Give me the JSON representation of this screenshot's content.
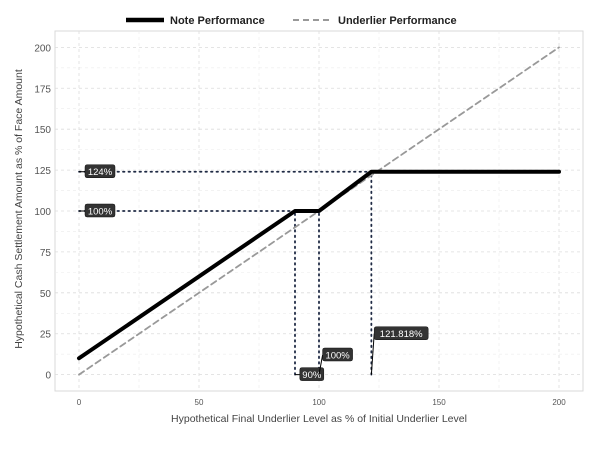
{
  "chart_data": {
    "type": "line",
    "legend": {
      "position": "top",
      "entries": [
        {
          "label": "Note Performance",
          "style": "solid",
          "color": "#000000"
        },
        {
          "label": "Underlier Performance",
          "style": "dashed",
          "color": "#999999"
        }
      ]
    },
    "xlabel": "Hypothetical Final Underlier Level as % of Initial Underlier Level",
    "ylabel": "Hypothetical Cash Settlement Amount as % of Face Amount",
    "xlim": [
      -10,
      210
    ],
    "ylim": [
      -10,
      210
    ],
    "x_ticks": [
      0,
      50,
      100,
      150,
      200
    ],
    "y_ticks": [
      0,
      25,
      50,
      75,
      100,
      125,
      150,
      175,
      200
    ],
    "grid": true,
    "series": [
      {
        "name": "Note Performance",
        "x": [
          0,
          90,
          100,
          121.818,
          200
        ],
        "y": [
          10,
          100,
          100,
          124,
          124
        ]
      },
      {
        "name": "Underlier Performance",
        "x": [
          0,
          200
        ],
        "y": [
          0,
          200
        ]
      }
    ],
    "reference_lines": [
      {
        "orientation": "horizontal",
        "y": 124,
        "x_from": 0,
        "x_to": 121.818
      },
      {
        "orientation": "horizontal",
        "y": 100,
        "x_from": 0,
        "x_to": 100
      },
      {
        "orientation": "vertical",
        "x": 90,
        "y_from": 0,
        "y_to": 100
      },
      {
        "orientation": "vertical",
        "x": 100,
        "y_from": 0,
        "y_to": 100
      },
      {
        "orientation": "vertical",
        "x": 121.818,
        "y_from": 0,
        "y_to": 124
      }
    ],
    "annotations": [
      {
        "text": "124%",
        "anchor_x": 0,
        "anchor_y": 124,
        "label_x": 2.5,
        "label_y": 124
      },
      {
        "text": "100%",
        "anchor_x": 0,
        "anchor_y": 100,
        "label_x": 2.5,
        "label_y": 100
      },
      {
        "text": "90%",
        "anchor_x": 90,
        "anchor_y": 0,
        "label_x": 92,
        "label_y": 0
      },
      {
        "text": "100%",
        "anchor_x": 100,
        "anchor_y": 0,
        "label_x": 101.5,
        "label_y": 12
      },
      {
        "text": "121.818%",
        "anchor_x": 121.818,
        "anchor_y": 0,
        "label_x": 123,
        "label_y": 25
      }
    ]
  }
}
